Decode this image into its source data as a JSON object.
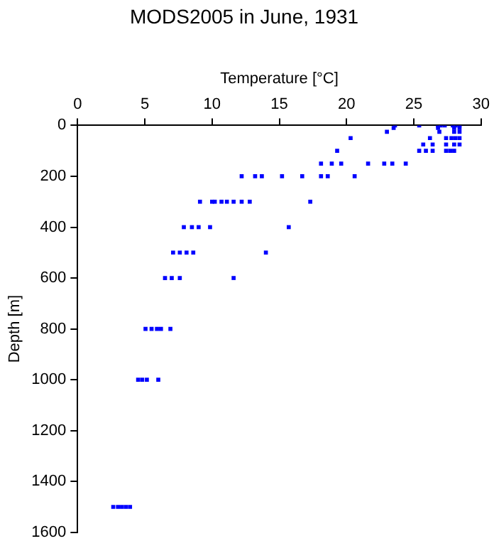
{
  "chart_data": {
    "type": "scatter",
    "title": "MODS2005 in June, 1931",
    "xlabel": "Temperature [°C]",
    "ylabel": "Depth [m]",
    "xlim": [
      0,
      30
    ],
    "xticks": [
      0,
      5,
      10,
      15,
      20,
      25,
      30
    ],
    "ylim": [
      1600,
      0
    ],
    "yticks": [
      0,
      200,
      400,
      600,
      800,
      1000,
      1200,
      1400,
      1600
    ],
    "grid": false,
    "legend": false,
    "marker": "square",
    "series": [
      {
        "color": "#0000ff",
        "x": [
          23.6,
          25.4,
          26.8,
          27.0,
          27.3,
          27.9,
          28.1,
          28.4,
          23.5,
          26.8,
          28.0,
          28.4,
          23.0,
          26.9,
          28.0,
          28.4,
          20.3,
          26.2,
          27.4,
          27.8,
          28.1,
          28.4,
          25.7,
          26.4,
          27.4,
          28.0,
          28.4,
          19.3,
          25.4,
          25.9,
          26.4,
          27.4,
          27.7,
          28.0,
          18.1,
          18.9,
          19.6,
          21.6,
          22.8,
          23.4,
          24.4,
          12.2,
          13.2,
          13.7,
          15.2,
          16.7,
          18.1,
          18.6,
          20.6,
          9.1,
          10.0,
          10.2,
          10.7,
          11.1,
          11.6,
          12.2,
          12.8,
          17.3,
          7.9,
          8.5,
          9.0,
          9.85,
          15.7,
          7.1,
          7.6,
          8.1,
          8.6,
          14.0,
          6.5,
          7.0,
          7.6,
          11.6,
          5.05,
          5.5,
          5.9,
          6.2,
          6.9,
          4.5,
          4.8,
          5.15,
          6.0,
          2.65,
          3.0,
          3.3,
          3.6,
          3.9
        ],
        "values": [
          0,
          0,
          0,
          0,
          0,
          0,
          0,
          0,
          10,
          10,
          10,
          10,
          25,
          25,
          25,
          25,
          50,
          50,
          50,
          50,
          50,
          50,
          75,
          75,
          75,
          75,
          75,
          100,
          100,
          100,
          100,
          100,
          100,
          100,
          150,
          150,
          150,
          150,
          150,
          150,
          150,
          200,
          200,
          200,
          200,
          200,
          200,
          200,
          200,
          300,
          300,
          300,
          300,
          300,
          300,
          300,
          300,
          300,
          400,
          400,
          400,
          400,
          400,
          500,
          500,
          500,
          500,
          500,
          600,
          600,
          600,
          600,
          800,
          800,
          800,
          800,
          800,
          1000,
          1000,
          1000,
          1000,
          1500,
          1500,
          1500,
          1500,
          1500
        ]
      }
    ]
  }
}
